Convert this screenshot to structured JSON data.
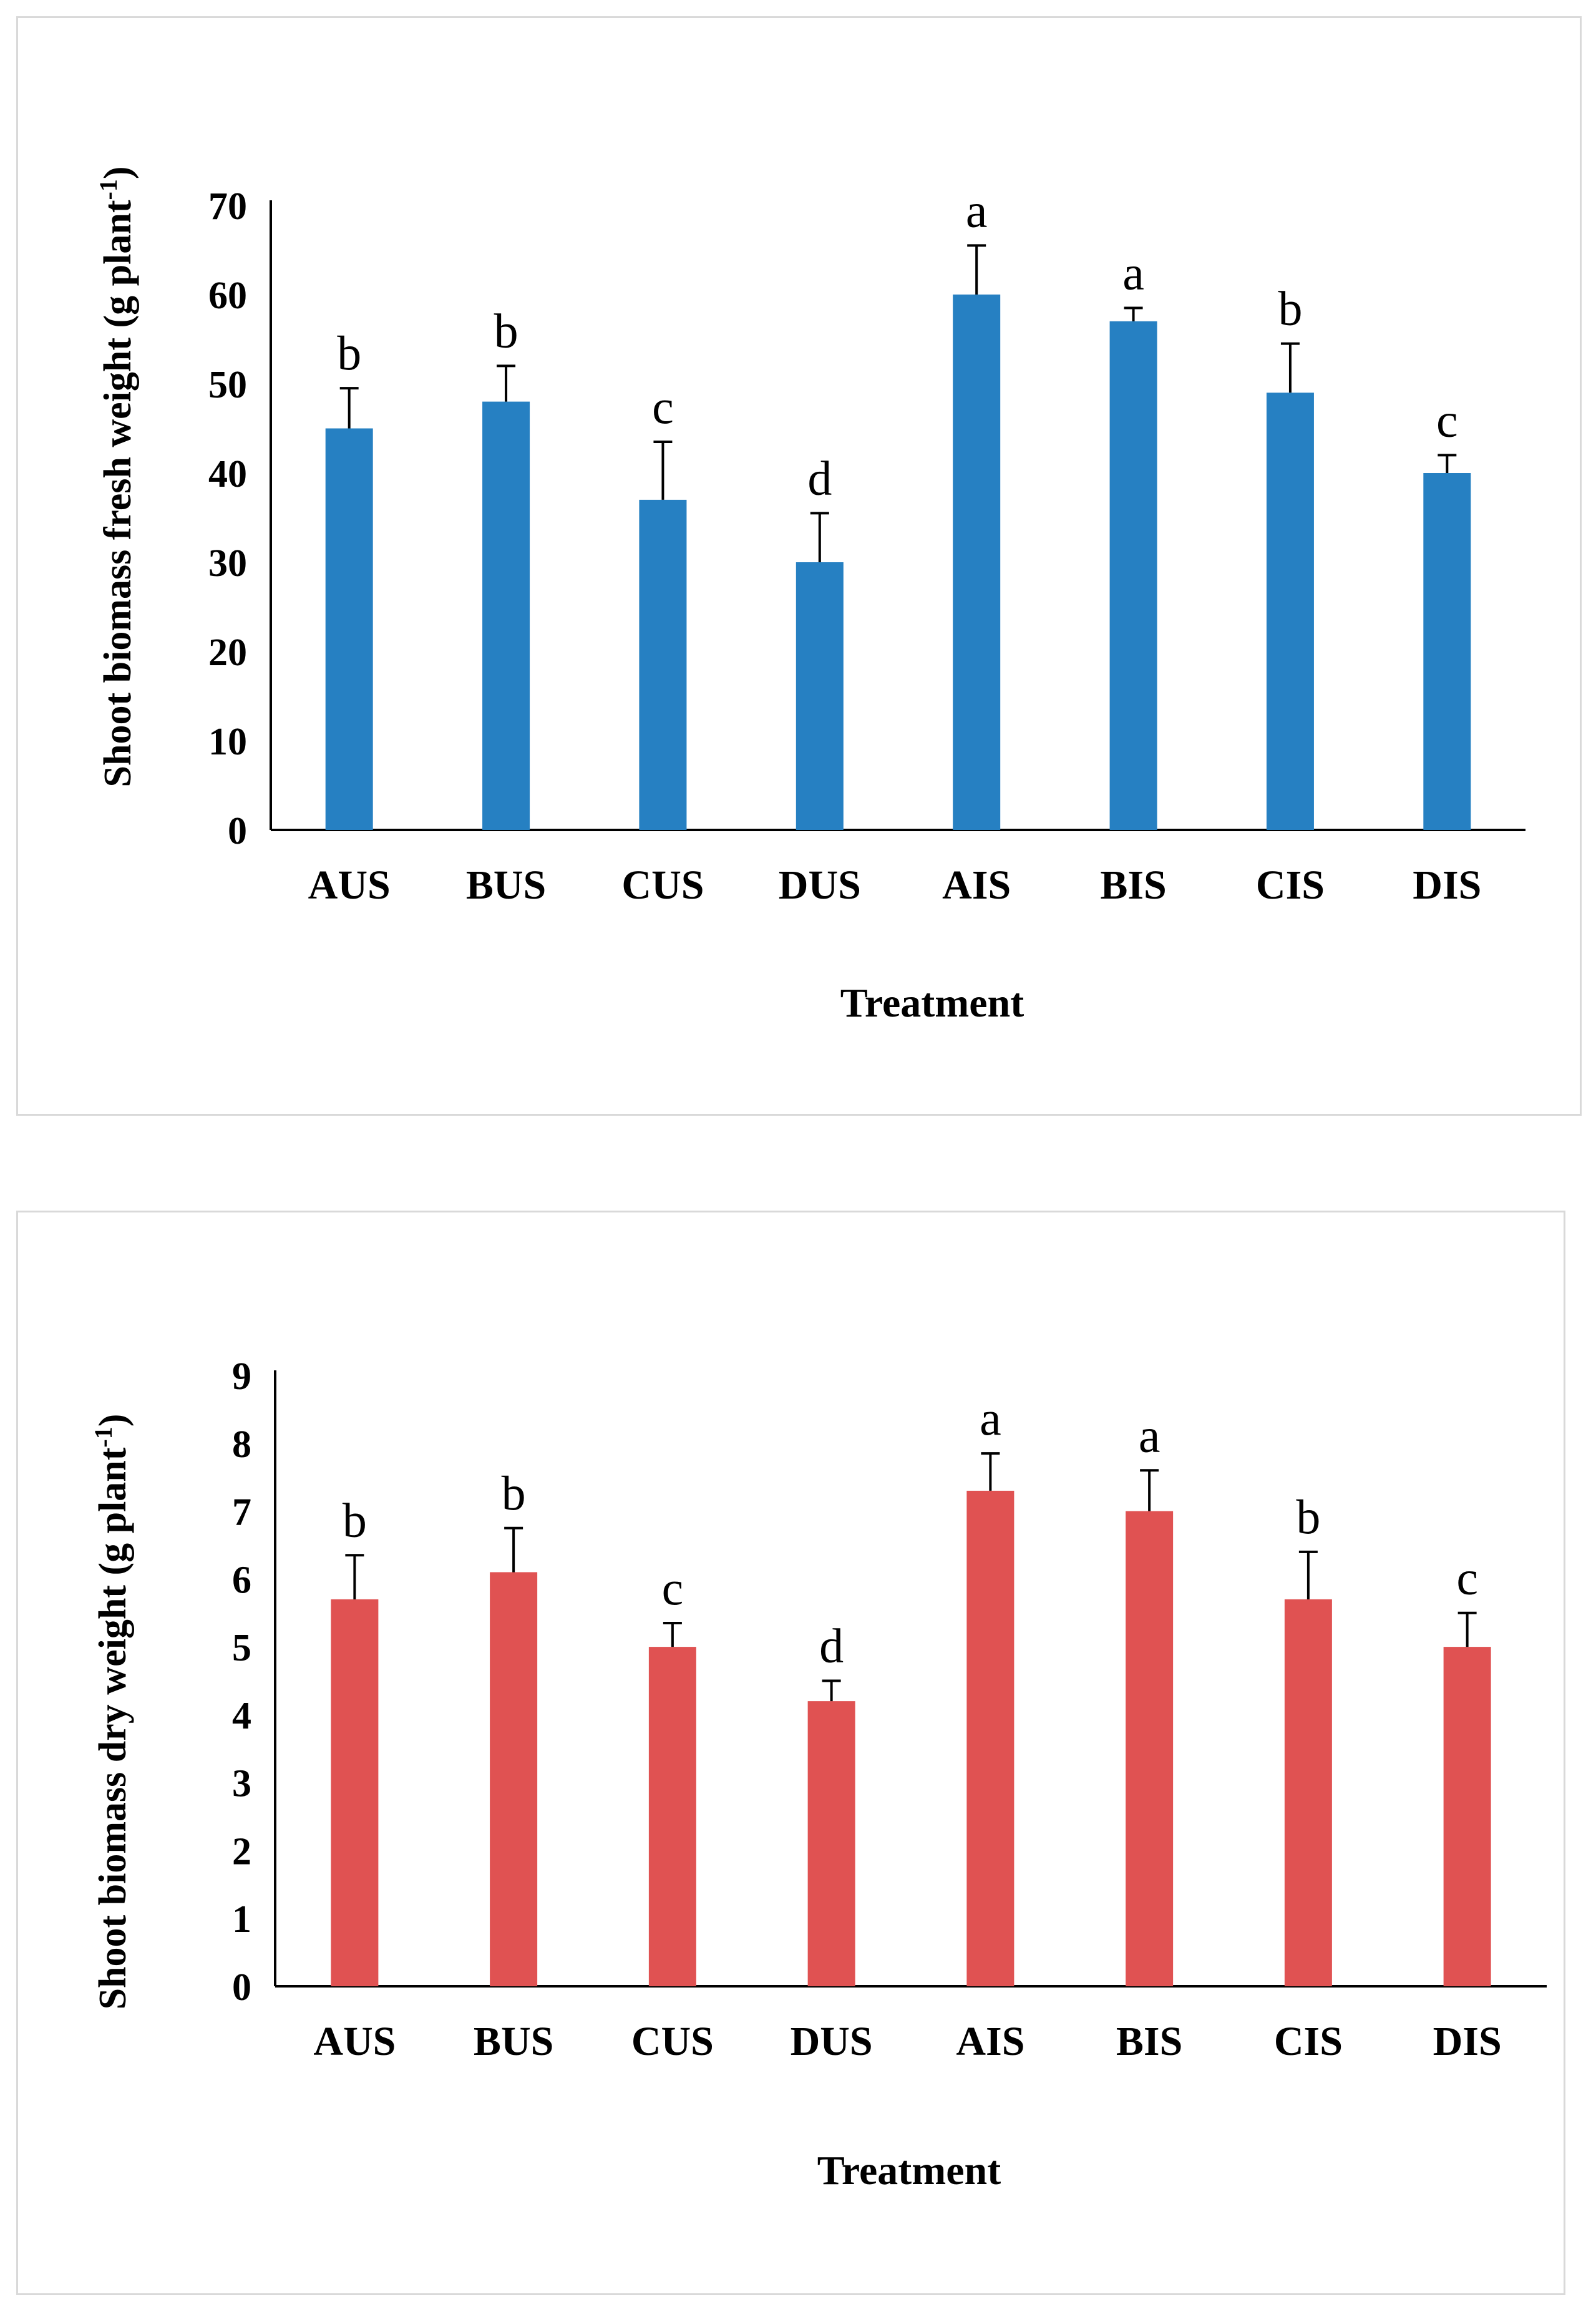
{
  "colors": {
    "series1": "#2680c2",
    "series2": "#e05252",
    "axis": "#000000",
    "border": "#d9d9d9"
  },
  "chart_data": [
    {
      "type": "bar",
      "categories": [
        "AUS",
        "BUS",
        "CUS",
        "DUS",
        "AIS",
        "BIS",
        "CIS",
        "DIS"
      ],
      "values": [
        45,
        48,
        37,
        30,
        60,
        57,
        49,
        40
      ],
      "error": [
        4.5,
        4,
        6.5,
        5.5,
        5.5,
        1.5,
        5.5,
        2
      ],
      "letters": [
        "b",
        "b",
        "c",
        "d",
        "a",
        "a",
        "b",
        "c"
      ],
      "ylim": [
        0,
        70
      ],
      "yticks": [
        "0",
        "10",
        "20",
        "30",
        "40",
        "50",
        "60",
        "70"
      ],
      "xlabel": "Treatment",
      "ylabel": "Shoot biomass  fresh weight  (g plant",
      "ylabel_sup": "-1",
      "ylabel_end": ")",
      "title": "",
      "grid": false
    },
    {
      "type": "bar",
      "categories": [
        "AUS",
        "BUS",
        "CUS",
        "DUS",
        "AIS",
        "BIS",
        "CIS",
        "DIS"
      ],
      "values": [
        5.7,
        6.1,
        5.0,
        4.2,
        7.3,
        7.0,
        5.7,
        5.0
      ],
      "error": [
        0.65,
        0.65,
        0.35,
        0.3,
        0.55,
        0.6,
        0.7,
        0.5
      ],
      "letters": [
        "b",
        "b",
        "c",
        "d",
        "a",
        "a",
        "b",
        "c"
      ],
      "ylim": [
        0,
        9
      ],
      "yticks": [
        "0",
        "1",
        "2",
        "3",
        "4",
        "5",
        "6",
        "7",
        "8",
        "9"
      ],
      "xlabel": "Treatment",
      "ylabel": "Shoot biomass dry weight (g plant",
      "ylabel_sup": "-1",
      "ylabel_end": ")",
      "title": "",
      "grid": false
    }
  ]
}
